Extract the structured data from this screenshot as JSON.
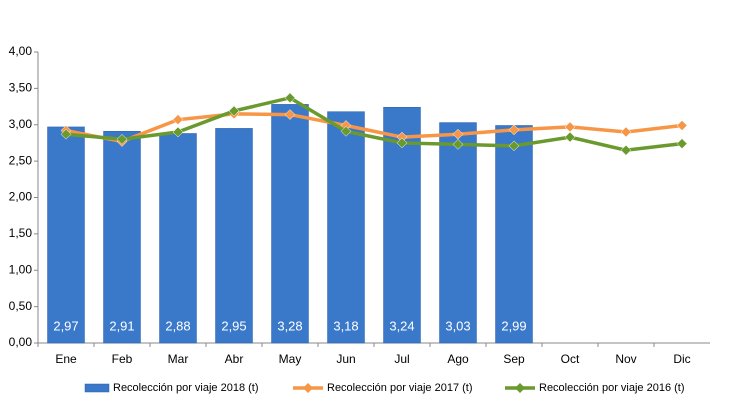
{
  "chart_data": {
    "type": "bar",
    "categories": [
      "Ene",
      "Feb",
      "Mar",
      "Abr",
      "May",
      "Jun",
      "Jul",
      "Ago",
      "Sep",
      "Oct",
      "Nov",
      "Dic"
    ],
    "series": [
      {
        "name": "Recolección por viaje 2018 (t)",
        "type": "bar",
        "color": "#3a78c9",
        "values": [
          2.97,
          2.91,
          2.88,
          2.95,
          3.28,
          3.18,
          3.24,
          3.03,
          2.99,
          null,
          null,
          null
        ],
        "value_labels": [
          "2,97",
          "2,91",
          "2,88",
          "2,95",
          "3,28",
          "3,18",
          "3,24",
          "3,03",
          "2,99",
          null,
          null,
          null
        ]
      },
      {
        "name": "Recolección por viaje 2017 (t)",
        "type": "line",
        "color": "#f79646",
        "values": [
          2.92,
          2.77,
          3.07,
          3.15,
          3.14,
          2.99,
          2.83,
          2.87,
          2.93,
          2.97,
          2.9,
          2.99
        ]
      },
      {
        "name": "Recolección por viaje 2016 (t)",
        "type": "line",
        "color": "#6a9a2e",
        "values": [
          2.87,
          2.8,
          2.9,
          3.19,
          3.37,
          2.91,
          2.75,
          2.73,
          2.71,
          2.83,
          2.65,
          2.74
        ]
      }
    ],
    "ylim": [
      0,
      4
    ],
    "yticks": [
      {
        "value": 0,
        "label": "0,00"
      },
      {
        "value": 0.5,
        "label": "0,50"
      },
      {
        "value": 1,
        "label": "1,00"
      },
      {
        "value": 1.5,
        "label": "1,50"
      },
      {
        "value": 2,
        "label": "2,00"
      },
      {
        "value": 2.5,
        "label": "2,50"
      },
      {
        "value": 3,
        "label": "3,00"
      },
      {
        "value": 3.5,
        "label": "3,50"
      },
      {
        "value": 4,
        "label": "4,00"
      }
    ],
    "grid": false,
    "legend": "bottom"
  }
}
